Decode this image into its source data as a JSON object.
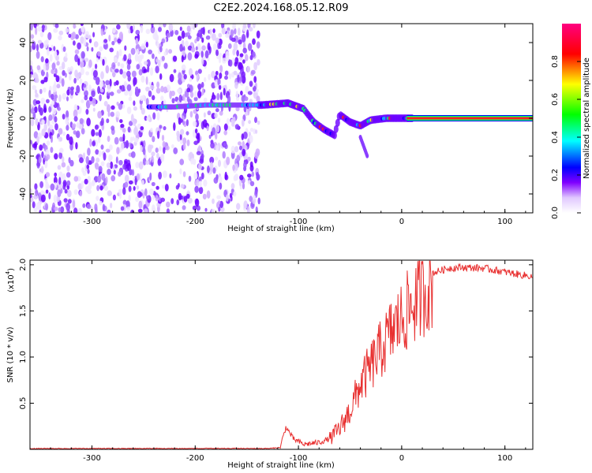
{
  "title": "C2E2.2024.168.05.12.R09",
  "chart_data": [
    {
      "type": "heatmap",
      "xlabel": "Height of straight line (km)",
      "ylabel": "Frequency (Hz)",
      "xlim": [
        -360,
        127
      ],
      "ylim": [
        -50,
        50
      ],
      "x_ticks": [
        -300,
        -200,
        -100,
        0,
        100
      ],
      "y_ticks": [
        -40,
        -20,
        0,
        20,
        40
      ],
      "colorbar": {
        "label": "Normalized spectral amplitude",
        "range": [
          0,
          1
        ],
        "ticks": [
          0.0,
          0.2,
          0.4,
          0.6,
          0.8
        ],
        "colors": [
          "#ffffff",
          "#cc99ff",
          "#8000ff",
          "#0000ff",
          "#00ffff",
          "#00ff00",
          "#ffff00",
          "#ff0000",
          "#ff00aa"
        ]
      },
      "ridge": [
        {
          "x": -245,
          "y": 6
        },
        {
          "x": -220,
          "y": 6
        },
        {
          "x": -190,
          "y": 7
        },
        {
          "x": -160,
          "y": 7
        },
        {
          "x": -135,
          "y": 7
        },
        {
          "x": -110,
          "y": 8
        },
        {
          "x": -95,
          "y": 5
        },
        {
          "x": -85,
          "y": -2
        },
        {
          "x": -75,
          "y": -6
        },
        {
          "x": -65,
          "y": -9
        },
        {
          "x": -60,
          "y": 2
        },
        {
          "x": -50,
          "y": -2
        },
        {
          "x": -40,
          "y": -4
        },
        {
          "x": -30,
          "y": -1
        },
        {
          "x": -15,
          "y": 0
        },
        {
          "x": 0,
          "y": 0
        },
        {
          "x": 127,
          "y": 0
        }
      ]
    },
    {
      "type": "line",
      "xlabel": "Height of straight line (km)",
      "ylabel": "SNR (10 * v/v)",
      "scale_label": "(x10",
      "scale_exp": "4",
      "scale_close": ")",
      "xlim": [
        -360,
        127
      ],
      "ylim": [
        0,
        2.05
      ],
      "x_ticks": [
        -300,
        -200,
        -100,
        0,
        100
      ],
      "y_ticks": [
        0.5,
        1.0,
        1.5,
        2.0
      ],
      "series": [
        {
          "color": "#e83030",
          "values": [
            [
              -360,
              0.01
            ],
            [
              -300,
              0.01
            ],
            [
              -200,
              0.01
            ],
            [
              -130,
              0.01
            ],
            [
              -118,
              0.02
            ],
            [
              -112,
              0.25
            ],
            [
              -105,
              0.12
            ],
            [
              -95,
              0.06
            ],
            [
              -80,
              0.08
            ],
            [
              -70,
              0.12
            ],
            [
              -60,
              0.25
            ],
            [
              -50,
              0.45
            ],
            [
              -40,
              0.75
            ],
            [
              -30,
              0.95
            ],
            [
              -20,
              1.15
            ],
            [
              -10,
              1.35
            ],
            [
              0,
              1.5
            ],
            [
              10,
              1.65
            ],
            [
              20,
              1.8
            ],
            [
              30,
              1.92
            ],
            [
              45,
              1.97
            ],
            [
              60,
              1.98
            ],
            [
              80,
              1.97
            ],
            [
              100,
              1.93
            ],
            [
              115,
              1.9
            ],
            [
              127,
              1.88
            ]
          ]
        }
      ]
    }
  ]
}
